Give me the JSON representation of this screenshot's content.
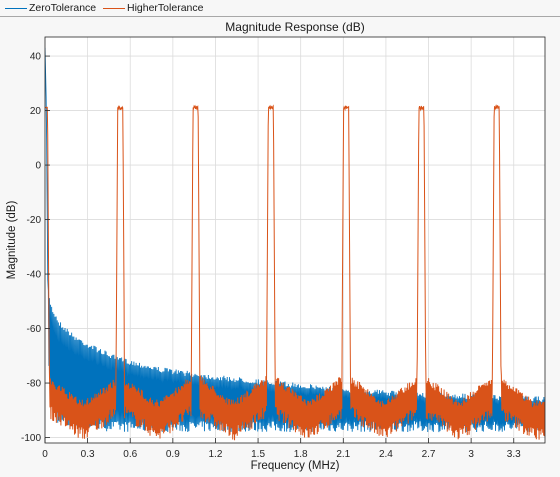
{
  "legend": {
    "items": [
      {
        "label": "ZeroTolerance",
        "color": "#0072bd"
      },
      {
        "label": "HigherTolerance",
        "color": "#d95319"
      }
    ]
  },
  "chart_data": {
    "type": "line",
    "title": "Magnitude Response (dB)",
    "xlabel": "Frequency (MHz)",
    "ylabel": "Magnitude (dB)",
    "xlim": [
      0,
      3.52
    ],
    "ylim": [
      -102,
      47
    ],
    "xticks": [
      0,
      0.3,
      0.6,
      0.9,
      1.2,
      1.5,
      1.8,
      2.1,
      2.4,
      2.7,
      3,
      3.3
    ],
    "xtick_labels": [
      "0",
      "0.3",
      "0.6",
      "0.9",
      "1.2",
      "1.5",
      "1.8",
      "2.1",
      "2.4",
      "2.7",
      "3",
      "3.3"
    ],
    "yticks": [
      -100,
      -80,
      -60,
      -40,
      -20,
      0,
      20,
      40
    ],
    "ytick_labels": [
      "-100",
      "-80",
      "-60",
      "-40",
      "-20",
      "0",
      "20",
      "40"
    ],
    "grid": true,
    "legend_position": "top",
    "series": [
      {
        "name": "ZeroTolerance",
        "color": "#0072bd",
        "x": [
          0,
          0.01,
          0.02,
          0.03,
          0.05,
          0.1,
          0.2,
          0.3,
          0.5,
          0.8,
          1.2,
          1.6,
          2.0,
          2.5,
          3.0,
          3.52
        ],
        "y_upper": [
          43,
          20,
          -45,
          -48,
          -52,
          -57,
          -62,
          -65,
          -70,
          -74,
          -77,
          -79,
          -81,
          -83,
          -84,
          -85
        ],
        "y_lower": [
          43,
          20,
          -70,
          -80,
          -90,
          -96,
          -97,
          -97,
          -98,
          -98,
          -98,
          -98,
          -98,
          -98,
          -98,
          -98
        ]
      },
      {
        "name": "HigherTolerance",
        "color": "#d95319",
        "passbands": [
          {
            "center": 0.0,
            "level": 21,
            "floor": -78
          },
          {
            "center": 0.53,
            "level": 21,
            "floor": -78
          },
          {
            "center": 1.06,
            "level": 21,
            "floor": -77
          },
          {
            "center": 1.59,
            "level": 21,
            "floor": -77
          },
          {
            "center": 2.12,
            "level": 21,
            "floor": -77
          },
          {
            "center": 2.65,
            "level": 21,
            "floor": -77
          },
          {
            "center": 3.18,
            "level": 21,
            "floor": -77
          }
        ],
        "stopband_upper": -86,
        "stopband_lower": -101
      }
    ]
  }
}
